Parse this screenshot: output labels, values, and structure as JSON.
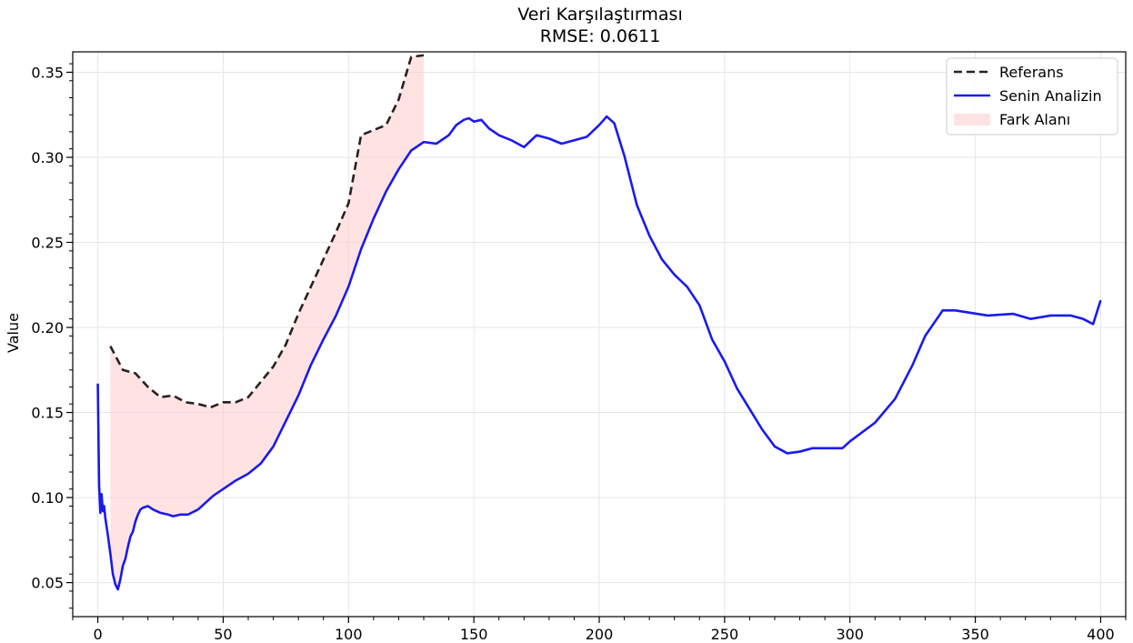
{
  "chart_data": {
    "type": "line",
    "title": "Veri Karşılaştırması",
    "subtitle": "RMSE: 0.0611",
    "xlabel": "",
    "ylabel": "Value",
    "xlim": [
      -10,
      410
    ],
    "ylim": [
      0.03,
      0.362
    ],
    "x_ticks": [
      0,
      50,
      100,
      150,
      200,
      250,
      300,
      350,
      400
    ],
    "y_ticks": [
      0.05,
      0.1,
      0.15,
      0.2,
      0.25,
      0.3,
      0.35
    ],
    "y_tick_labels": [
      "0.05",
      "0.10",
      "0.15",
      "0.20",
      "0.25",
      "0.30",
      "0.35"
    ],
    "grid": true,
    "legend_position": "top-right",
    "series": [
      {
        "name": "Referans",
        "style": "dashed",
        "color": "#2a2020",
        "x": [
          5,
          10,
          15,
          20,
          25,
          30,
          35,
          40,
          45,
          50,
          55,
          60,
          65,
          70,
          75,
          80,
          85,
          90,
          95,
          100,
          105,
          110,
          115,
          120,
          125,
          130
        ],
        "y": [
          0.189,
          0.175,
          0.173,
          0.165,
          0.159,
          0.16,
          0.156,
          0.155,
          0.153,
          0.156,
          0.156,
          0.159,
          0.168,
          0.177,
          0.19,
          0.208,
          0.224,
          0.24,
          0.256,
          0.273,
          0.313,
          0.316,
          0.319,
          0.334,
          0.359,
          0.36
        ]
      },
      {
        "name": "Senin Analizin",
        "style": "solid",
        "color": "#1a1aee",
        "x": [
          0,
          0.5,
          1,
          1.5,
          2,
          2.5,
          3,
          4,
          5,
          6,
          7,
          8,
          9,
          10,
          11,
          12,
          13,
          14,
          15,
          16,
          17,
          18,
          20,
          22,
          25,
          28,
          30,
          33,
          36,
          40,
          43,
          46,
          50,
          55,
          60,
          65,
          70,
          75,
          80,
          85,
          90,
          95,
          100,
          105,
          110,
          115,
          120,
          125,
          130,
          135,
          140,
          143,
          146,
          148,
          150,
          153,
          156,
          160,
          165,
          170,
          175,
          180,
          185,
          190,
          195,
          200,
          203,
          206,
          210,
          215,
          220,
          225,
          230,
          235,
          240,
          245,
          250,
          255,
          260,
          265,
          270,
          275,
          280,
          285,
          290,
          297,
          300,
          310,
          318,
          325,
          330,
          337,
          342,
          355,
          365,
          372,
          380,
          388,
          393,
          397,
          400
        ],
        "y": [
          0.167,
          0.108,
          0.091,
          0.102,
          0.092,
          0.095,
          0.088,
          0.078,
          0.067,
          0.055,
          0.049,
          0.046,
          0.052,
          0.06,
          0.064,
          0.071,
          0.077,
          0.08,
          0.086,
          0.09,
          0.093,
          0.094,
          0.095,
          0.093,
          0.091,
          0.09,
          0.089,
          0.09,
          0.09,
          0.093,
          0.097,
          0.101,
          0.105,
          0.11,
          0.114,
          0.12,
          0.13,
          0.145,
          0.16,
          0.178,
          0.193,
          0.207,
          0.224,
          0.246,
          0.264,
          0.28,
          0.293,
          0.304,
          0.309,
          0.308,
          0.313,
          0.319,
          0.322,
          0.323,
          0.321,
          0.322,
          0.317,
          0.313,
          0.31,
          0.306,
          0.313,
          0.311,
          0.308,
          0.31,
          0.312,
          0.319,
          0.324,
          0.32,
          0.301,
          0.272,
          0.254,
          0.24,
          0.231,
          0.224,
          0.213,
          0.193,
          0.18,
          0.164,
          0.152,
          0.14,
          0.13,
          0.126,
          0.127,
          0.129,
          0.129,
          0.129,
          0.133,
          0.144,
          0.158,
          0.178,
          0.195,
          0.21,
          0.21,
          0.207,
          0.208,
          0.205,
          0.207,
          0.207,
          0.205,
          0.202,
          0.216
        ]
      }
    ],
    "fill_between": {
      "name": "Fark Alanı",
      "color": "#ffcccc",
      "x_start": 5,
      "x_end": 130
    }
  }
}
